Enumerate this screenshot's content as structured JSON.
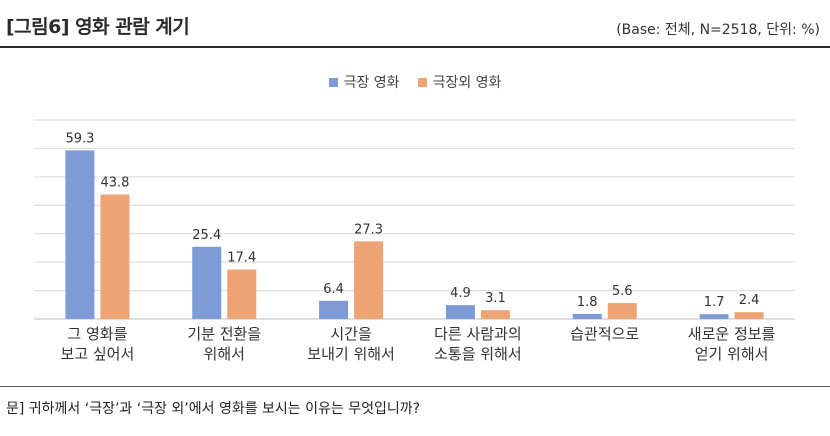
{
  "header": {
    "title": "[그림6]  영화 관람 계기",
    "base_note": "(Base:  전체,  N=2518,  단위:  %)"
  },
  "footer": {
    "question": "문]  귀하께서 ‘극장’과 ‘극장 외’에서 영화를 보시는 이유는 무엇입니까?"
  },
  "chart_data": {
    "type": "bar",
    "categories": [
      [
        "그 영화를",
        "보고 싶어서"
      ],
      [
        "기분 전환을",
        "위해서"
      ],
      [
        "시간을",
        "보내기 위해서"
      ],
      [
        "다른 사람과의",
        "소통을 위해서"
      ],
      [
        "습관적으로"
      ],
      [
        "새로운 정보를",
        "얻기 위해서"
      ]
    ],
    "series": [
      {
        "name": "극장 영화",
        "values": [
          59.3,
          25.4,
          6.4,
          4.9,
          1.8,
          1.7
        ],
        "color": "#7f9bd6"
      },
      {
        "name": "극장외 영화",
        "values": [
          43.8,
          17.4,
          27.3,
          3.1,
          5.6,
          2.4
        ],
        "color": "#eea374"
      }
    ],
    "ylim": [
      0,
      70
    ],
    "grid": true,
    "legend_position": "top-center"
  }
}
